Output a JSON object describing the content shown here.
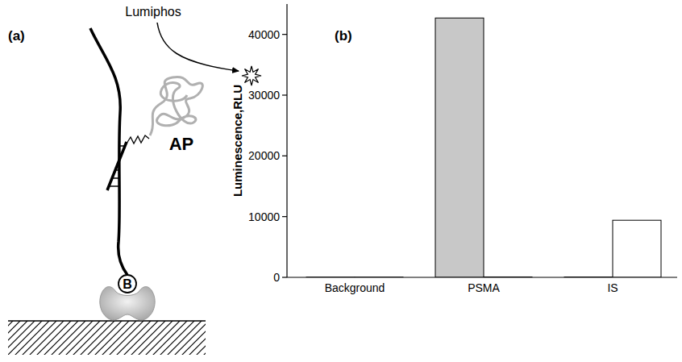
{
  "panels": {
    "a": "(a)",
    "b": "(b)"
  },
  "diagram": {
    "substrate": "Lumiphos",
    "enzyme": "AP",
    "biotin": "B"
  },
  "chart_data": {
    "type": "bar",
    "y_label": "Luminescence,RLU",
    "categories": [
      "Background",
      "PSMA",
      "IS"
    ],
    "series": [
      {
        "color": "#c8c8c8",
        "values": [
          40,
          42700,
          60
        ]
      },
      {
        "color": "#ffffff",
        "values": [
          40,
          70,
          9400
        ]
      }
    ],
    "ylim": [
      0,
      45000
    ],
    "yticks": [
      0,
      10000,
      20000,
      30000,
      40000
    ],
    "grid": false
  }
}
